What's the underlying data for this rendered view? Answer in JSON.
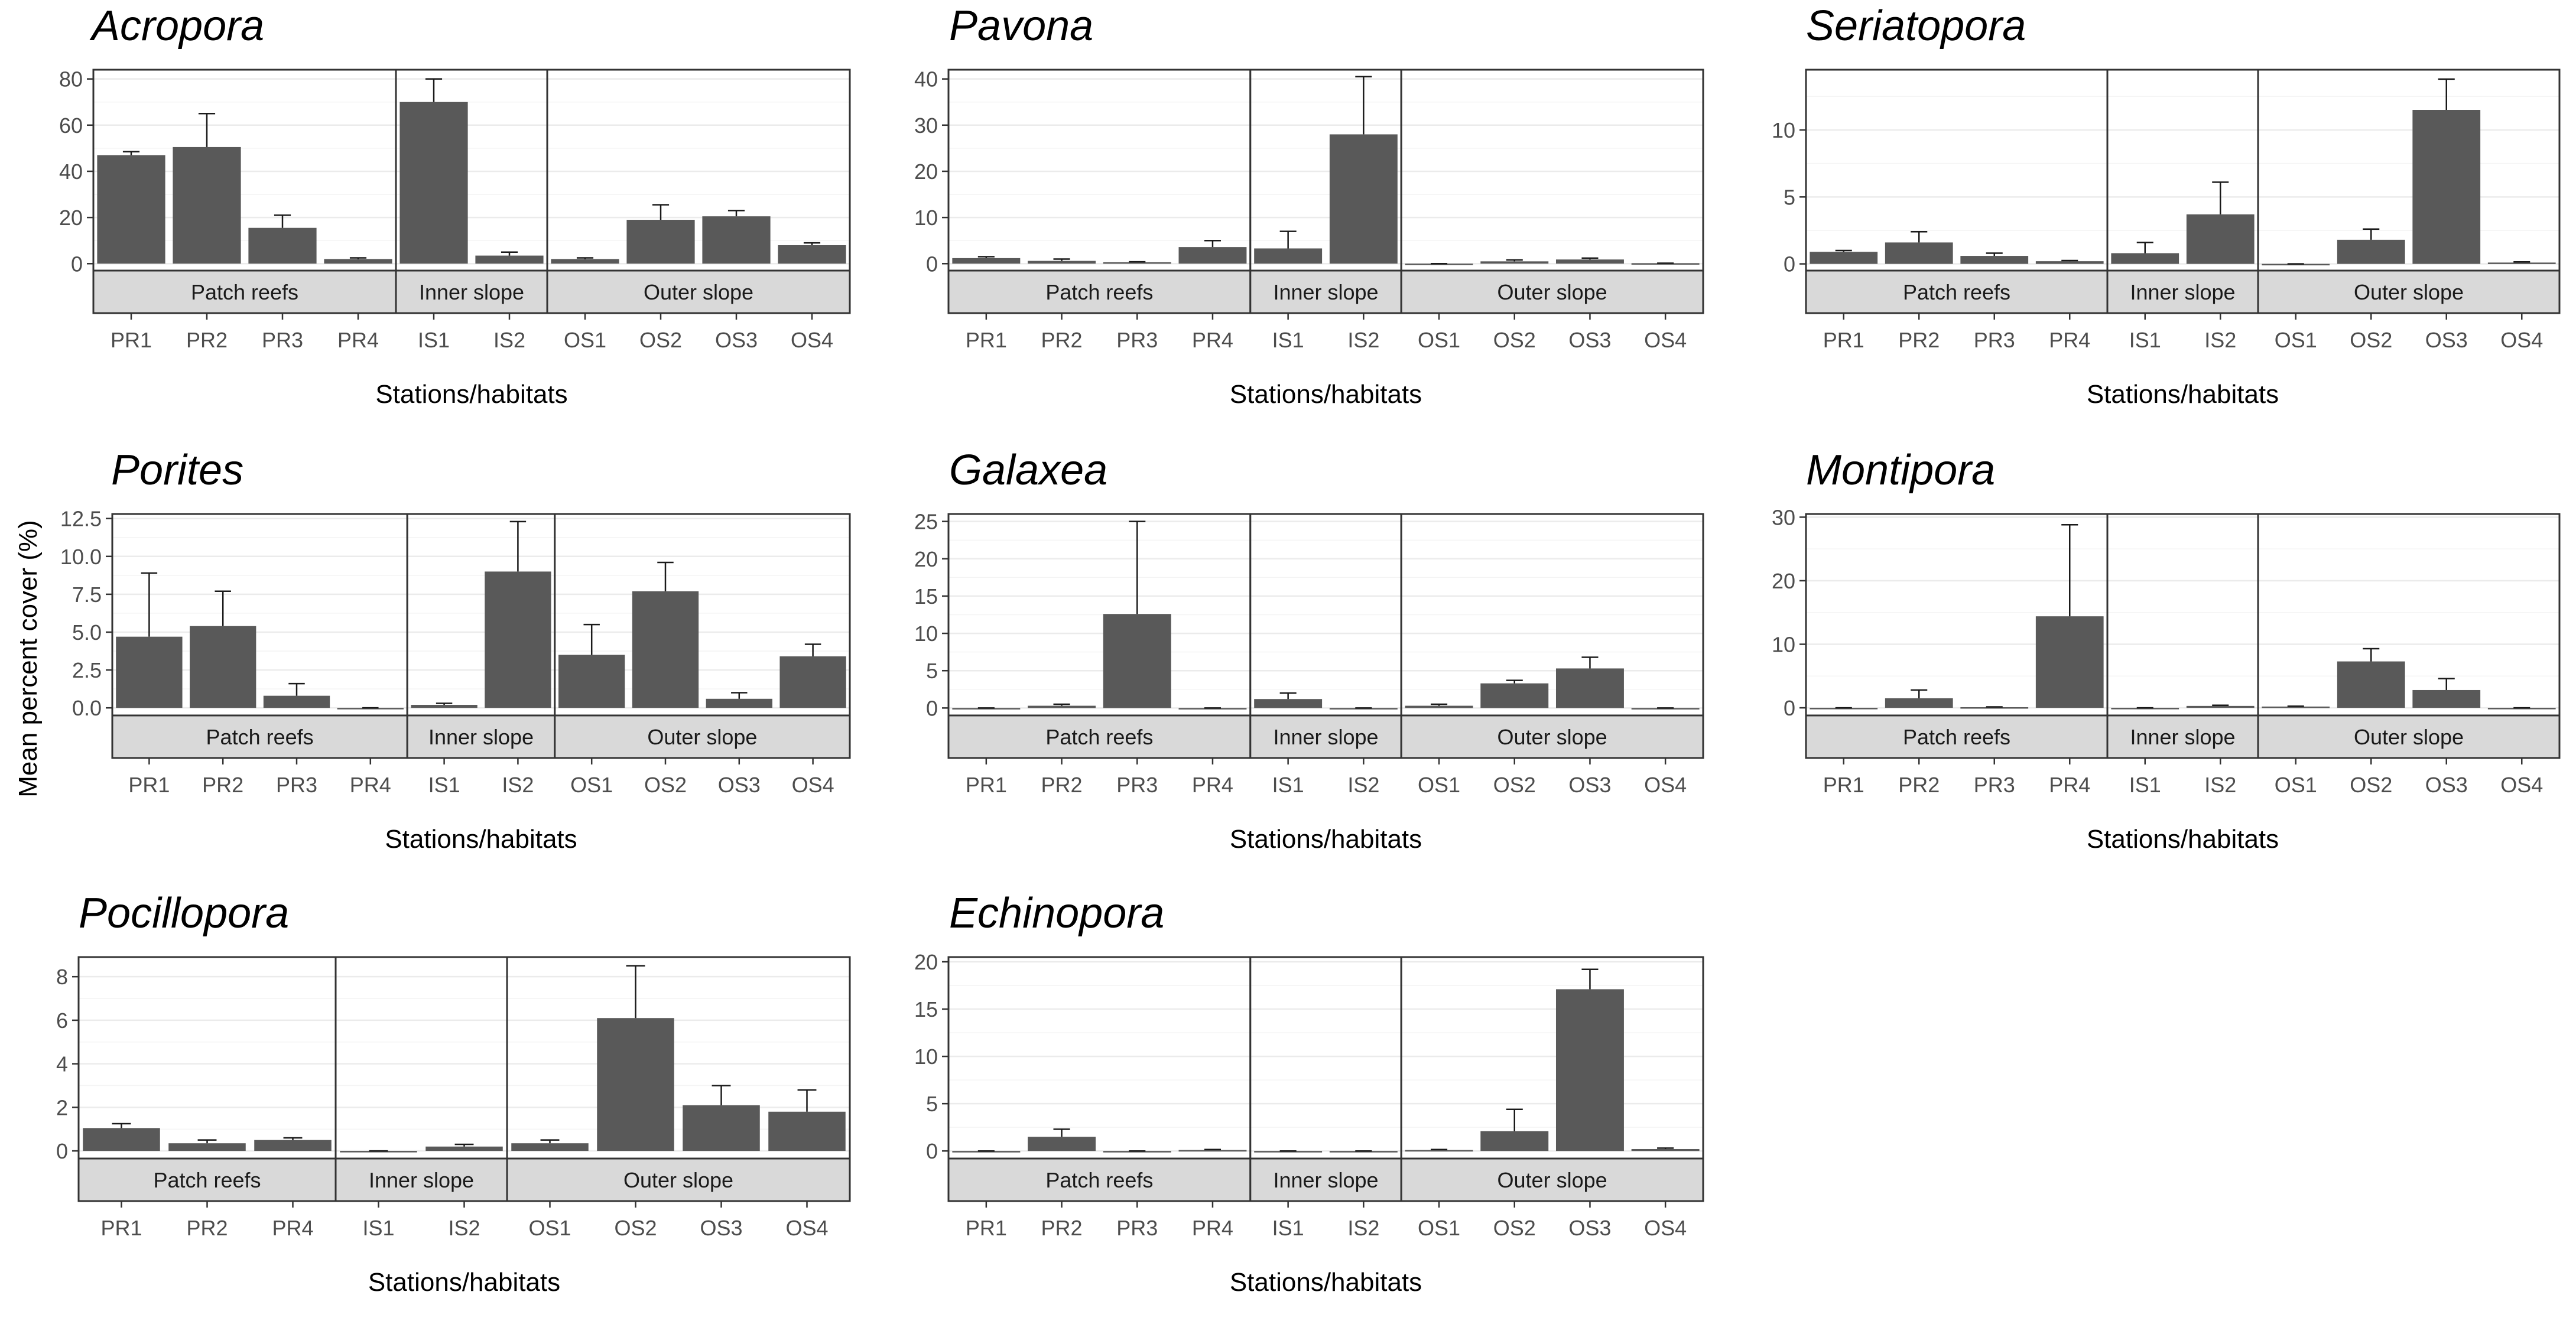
{
  "figure": {
    "ylabel": "Mean percent cover (%)",
    "xlabel": "Stations/habitats"
  },
  "chart_data": [
    {
      "type": "bar",
      "title": "Acropora",
      "xlabel": "Stations/habitats",
      "ylabel": "Mean percent cover (%)",
      "ylim": [
        -3,
        84
      ],
      "yticks": [
        0,
        20,
        40,
        60,
        80
      ],
      "yticklabels": [
        "0",
        "20",
        "40",
        "60",
        "80"
      ],
      "grid": true,
      "facets": [
        {
          "label": "Patch reefs",
          "categories": [
            "PR1",
            "PR2",
            "PR3",
            "PR4"
          ],
          "values": [
            47,
            50.5,
            15.5,
            2
          ],
          "errors": [
            1.5,
            14.5,
            5.5,
            0.5
          ]
        },
        {
          "label": "Inner slope",
          "categories": [
            "IS1",
            "IS2"
          ],
          "values": [
            70,
            3.5
          ],
          "errors": [
            10,
            1.5
          ]
        },
        {
          "label": "Outer slope",
          "categories": [
            "OS1",
            "OS2",
            "OS3",
            "OS4"
          ],
          "values": [
            2,
            19,
            20.5,
            8
          ],
          "errors": [
            0.5,
            6.5,
            2.5,
            1
          ]
        }
      ]
    },
    {
      "type": "bar",
      "title": "Pavona",
      "xlabel": "Stations/habitats",
      "ylabel": "Mean percent cover (%)",
      "ylim": [
        -1.5,
        42
      ],
      "yticks": [
        0,
        10,
        20,
        30,
        40
      ],
      "yticklabels": [
        "0",
        "10",
        "20",
        "30",
        "40"
      ],
      "grid": true,
      "facets": [
        {
          "label": "Patch reefs",
          "categories": [
            "PR1",
            "PR2",
            "PR3",
            "PR4"
          ],
          "values": [
            1.2,
            0.6,
            0.3,
            3.6
          ],
          "errors": [
            0.3,
            0.4,
            0.1,
            1.4
          ]
        },
        {
          "label": "Inner slope",
          "categories": [
            "IS1",
            "IS2"
          ],
          "values": [
            3.3,
            28
          ],
          "errors": [
            3.7,
            12.5
          ]
        },
        {
          "label": "Outer slope",
          "categories": [
            "OS1",
            "OS2",
            "OS3",
            "OS4"
          ],
          "values": [
            0,
            0.5,
            0.9,
            0.1
          ],
          "errors": [
            0,
            0.3,
            0.3,
            0
          ]
        }
      ]
    },
    {
      "type": "bar",
      "title": "Seriatopora",
      "xlabel": "Stations/habitats",
      "ylabel": "Mean percent cover (%)",
      "ylim": [
        -0.5,
        14.5
      ],
      "yticks": [
        0,
        5,
        10
      ],
      "yticklabels": [
        "0",
        "5",
        "10"
      ],
      "grid": true,
      "facets": [
        {
          "label": "Patch reefs",
          "categories": [
            "PR1",
            "PR2",
            "PR3",
            "PR4"
          ],
          "values": [
            0.9,
            1.6,
            0.6,
            0.2
          ],
          "errors": [
            0.1,
            0.8,
            0.2,
            0.05
          ]
        },
        {
          "label": "Inner slope",
          "categories": [
            "IS1",
            "IS2"
          ],
          "values": [
            0.8,
            3.7
          ],
          "errors": [
            0.8,
            2.4
          ]
        },
        {
          "label": "Outer slope",
          "categories": [
            "OS1",
            "OS2",
            "OS3",
            "OS4"
          ],
          "values": [
            0,
            1.8,
            11.5,
            0.1
          ],
          "errors": [
            0,
            0.8,
            2.3,
            0.05
          ]
        }
      ]
    },
    {
      "type": "bar",
      "title": "Porites",
      "xlabel": "Stations/habitats",
      "ylabel": "Mean percent cover (%)",
      "ylim": [
        -0.5,
        12.8
      ],
      "yticks": [
        0,
        2.5,
        5,
        7.5,
        10,
        12.5
      ],
      "yticklabels": [
        "0.0",
        "2.5",
        "5.0",
        "7.5",
        "10.0",
        "12.5"
      ],
      "grid": true,
      "facets": [
        {
          "label": "Patch reefs",
          "categories": [
            "PR1",
            "PR2",
            "PR3",
            "PR4"
          ],
          "values": [
            4.7,
            5.4,
            0.8,
            0
          ],
          "errors": [
            4.2,
            2.3,
            0.8,
            0
          ]
        },
        {
          "label": "Inner slope",
          "categories": [
            "IS1",
            "IS2"
          ],
          "values": [
            0.2,
            9
          ],
          "errors": [
            0.1,
            3.3
          ]
        },
        {
          "label": "Outer slope",
          "categories": [
            "OS1",
            "OS2",
            "OS3",
            "OS4"
          ],
          "values": [
            3.5,
            7.7,
            0.6,
            3.4
          ],
          "errors": [
            2,
            1.9,
            0.4,
            0.8
          ]
        }
      ]
    },
    {
      "type": "bar",
      "title": "Galaxea",
      "xlabel": "Stations/habitats",
      "ylabel": "Mean percent cover (%)",
      "ylim": [
        -1,
        26
      ],
      "yticks": [
        0,
        5,
        10,
        15,
        20,
        25
      ],
      "yticklabels": [
        "0",
        "5",
        "10",
        "15",
        "20",
        "25"
      ],
      "grid": true,
      "facets": [
        {
          "label": "Patch reefs",
          "categories": [
            "PR1",
            "PR2",
            "PR3",
            "PR4"
          ],
          "values": [
            0,
            0.3,
            12.6,
            0
          ],
          "errors": [
            0,
            0.2,
            12.4,
            0
          ]
        },
        {
          "label": "Inner slope",
          "categories": [
            "IS1",
            "IS2"
          ],
          "values": [
            1.2,
            0
          ],
          "errors": [
            0.8,
            0
          ]
        },
        {
          "label": "Outer slope",
          "categories": [
            "OS1",
            "OS2",
            "OS3",
            "OS4"
          ],
          "values": [
            0.3,
            3.3,
            5.3,
            0
          ],
          "errors": [
            0.2,
            0.4,
            1.5,
            0
          ]
        }
      ]
    },
    {
      "type": "bar",
      "title": "Montipora",
      "xlabel": "Stations/habitats",
      "ylabel": "Mean percent cover (%)",
      "ylim": [
        -1.2,
        30.5
      ],
      "yticks": [
        0,
        10,
        20,
        30
      ],
      "yticklabels": [
        "0",
        "10",
        "20",
        "30"
      ],
      "grid": true,
      "facets": [
        {
          "label": "Patch reefs",
          "categories": [
            "PR1",
            "PR2",
            "PR3",
            "PR4"
          ],
          "values": [
            0,
            1.5,
            0.1,
            14.4
          ],
          "errors": [
            0,
            1.3,
            0.05,
            14.4
          ]
        },
        {
          "label": "Inner slope",
          "categories": [
            "IS1",
            "IS2"
          ],
          "values": [
            0,
            0.3
          ],
          "errors": [
            0,
            0.1
          ]
        },
        {
          "label": "Outer slope",
          "categories": [
            "OS1",
            "OS2",
            "OS3",
            "OS4"
          ],
          "values": [
            0.2,
            7.3,
            2.8,
            0
          ],
          "errors": [
            0.05,
            2,
            1.8,
            0
          ]
        }
      ]
    },
    {
      "type": "bar",
      "title": "Pocillopora",
      "xlabel": "Stations/habitats",
      "ylabel": "Mean percent cover (%)",
      "ylim": [
        -0.35,
        8.9
      ],
      "yticks": [
        0,
        2,
        4,
        6,
        8
      ],
      "yticklabels": [
        "0",
        "2",
        "4",
        "6",
        "8"
      ],
      "grid": true,
      "facets": [
        {
          "label": "Patch reefs",
          "categories": [
            "PR1",
            "PR2",
            "PR4"
          ],
          "values": [
            1.05,
            0.35,
            0.5
          ],
          "errors": [
            0.2,
            0.15,
            0.1
          ]
        },
        {
          "label": "Inner slope",
          "categories": [
            "IS1",
            "IS2"
          ],
          "values": [
            0,
            0.2
          ],
          "errors": [
            0,
            0.1
          ]
        },
        {
          "label": "Outer slope",
          "categories": [
            "OS1",
            "OS2",
            "OS3",
            "OS4"
          ],
          "values": [
            0.35,
            6.1,
            2.1,
            1.8
          ],
          "errors": [
            0.15,
            2.4,
            0.9,
            1
          ]
        }
      ]
    },
    {
      "type": "bar",
      "title": "Echinopora",
      "xlabel": "Stations/habitats",
      "ylabel": "Mean percent cover (%)",
      "ylim": [
        -0.8,
        20.5
      ],
      "yticks": [
        0,
        5,
        10,
        15,
        20
      ],
      "yticklabels": [
        "0",
        "5",
        "10",
        "15",
        "20"
      ],
      "grid": true,
      "facets": [
        {
          "label": "Patch reefs",
          "categories": [
            "PR1",
            "PR2",
            "PR3",
            "PR4"
          ],
          "values": [
            0,
            1.5,
            0,
            0.1
          ],
          "errors": [
            0,
            0.8,
            0,
            0.05
          ]
        },
        {
          "label": "Inner slope",
          "categories": [
            "IS1",
            "IS2"
          ],
          "values": [
            0,
            0
          ],
          "errors": [
            0,
            0
          ]
        },
        {
          "label": "Outer slope",
          "categories": [
            "OS1",
            "OS2",
            "OS3",
            "OS4"
          ],
          "values": [
            0.1,
            2.1,
            17.1,
            0.2
          ],
          "errors": [
            0.05,
            2.3,
            2.1,
            0.1
          ]
        }
      ]
    }
  ]
}
